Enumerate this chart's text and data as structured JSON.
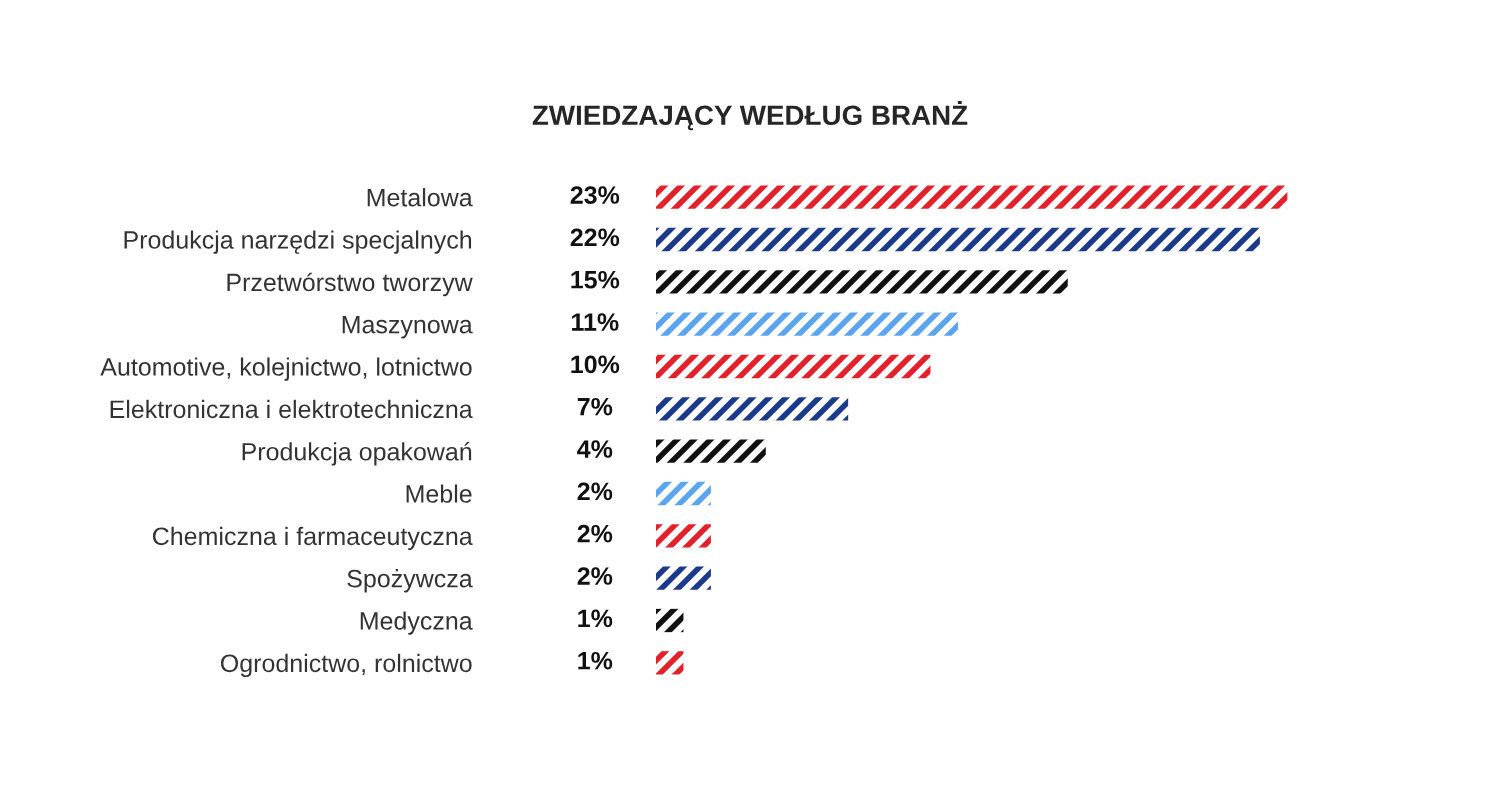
{
  "chart_data": {
    "type": "bar",
    "orientation": "horizontal",
    "title": "ZWIEDZAJĄCY WEDŁUG BRANŻ",
    "categories": [
      "Metalowa",
      "Produkcja narzędzi specjalnych",
      "Przetwórstwo tworzyw",
      "Maszynowa",
      "Automotive, kolejnictwo, lotnictwo",
      "Elektroniczna i elektrotechniczna",
      "Produkcja opakowań",
      "Meble",
      "Chemiczna i farmaceutyczna",
      "Spożywcza",
      "Medyczna",
      "Ogrodnictwo, rolnictwo"
    ],
    "values": [
      23,
      22,
      15,
      11,
      10,
      7,
      4,
      2,
      2,
      2,
      1,
      1
    ],
    "value_labels": [
      "23%",
      "22%",
      "15%",
      "11%",
      "10%",
      "7%",
      "4%",
      "2%",
      "2%",
      "2%",
      "1%",
      "1%"
    ],
    "colors": [
      "#e4202a",
      "#1b3a8c",
      "#111111",
      "#5ba4ef",
      "#e4202a",
      "#1b3a8c",
      "#111111",
      "#5ba4ef",
      "#e4202a",
      "#1b3a8c",
      "#111111",
      "#e4202a"
    ],
    "grid": false,
    "legend": false
  }
}
